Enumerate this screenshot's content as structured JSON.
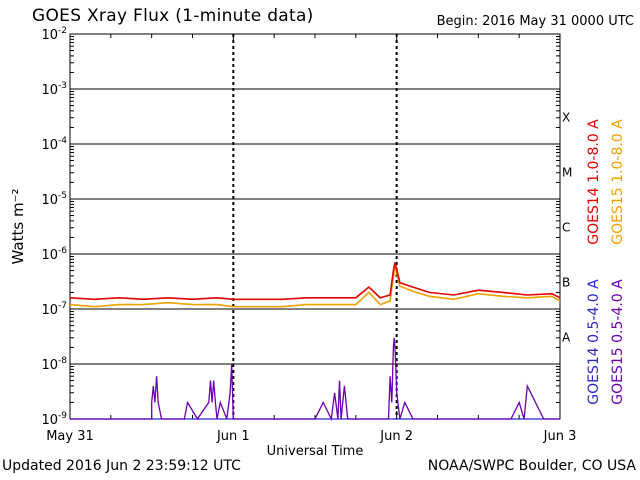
{
  "title": "GOES Xray Flux (1-minute data)",
  "begin_label": "Begin:  2016 May 31 0000 UTC",
  "updated_label": "Updated 2016 Jun  2 23:59:12 UTC",
  "credit_label": "NOAA/SWPC Boulder, CO USA",
  "colors": {
    "goes14_long": "#e60000",
    "goes15_long": "#f0a000",
    "goes14_short": "#2828c8",
    "goes15_short": "#6a00b0"
  },
  "chart_data": {
    "type": "line",
    "title": "GOES Xray Flux (1-minute data)",
    "xlabel": "Universal Time",
    "ylabel": "Watts m⁻²",
    "y_scale": "log",
    "ylim": [
      1e-09,
      0.01
    ],
    "xlim_days": [
      0,
      3
    ],
    "x_tick_labels": [
      "May 31",
      "Jun 1",
      "Jun 2",
      "Jun 3"
    ],
    "y_ticks": [
      {
        "base": "10",
        "exp": "-2"
      },
      {
        "base": "10",
        "exp": "-3"
      },
      {
        "base": "10",
        "exp": "-4"
      },
      {
        "base": "10",
        "exp": "-5"
      },
      {
        "base": "10",
        "exp": "-6"
      },
      {
        "base": "10",
        "exp": "-7"
      },
      {
        "base": "10",
        "exp": "-8"
      },
      {
        "base": "10",
        "exp": "-9"
      }
    ],
    "flare_classes": [
      {
        "label": "X",
        "log_flux": -3.5
      },
      {
        "label": "M",
        "log_flux": -4.5
      },
      {
        "label": "C",
        "log_flux": -5.5
      },
      {
        "label": "B",
        "log_flux": -6.5
      },
      {
        "label": "A",
        "log_flux": -7.5
      }
    ],
    "legend_position": "right",
    "series": [
      {
        "name": "GOES14 1.0-8.0 A",
        "x_days": [
          0,
          0.15,
          0.3,
          0.45,
          0.6,
          0.75,
          0.9,
          1.0,
          1.15,
          1.3,
          1.45,
          1.6,
          1.75,
          1.83,
          1.9,
          1.96,
          1.98,
          1.99,
          2.02,
          2.1,
          2.2,
          2.35,
          2.5,
          2.65,
          2.8,
          2.95,
          3.0
        ],
        "y_flux": [
          1.6e-07,
          1.5e-07,
          1.6e-07,
          1.5e-07,
          1.6e-07,
          1.5e-07,
          1.6e-07,
          1.5e-07,
          1.5e-07,
          1.5e-07,
          1.6e-07,
          1.6e-07,
          1.6e-07,
          2.5e-07,
          1.6e-07,
          1.8e-07,
          5e-07,
          7e-07,
          3e-07,
          2.5e-07,
          2e-07,
          1.8e-07,
          2.2e-07,
          2e-07,
          1.8e-07,
          1.9e-07,
          1.6e-07
        ]
      },
      {
        "name": "GOES15 1.0-8.0 A",
        "x_days": [
          0,
          0.15,
          0.3,
          0.45,
          0.6,
          0.75,
          0.9,
          1.0,
          1.15,
          1.3,
          1.45,
          1.6,
          1.75,
          1.83,
          1.9,
          1.96,
          1.98,
          1.99,
          2.02,
          2.1,
          2.2,
          2.35,
          2.5,
          2.65,
          2.8,
          2.95,
          3.0
        ],
        "y_flux": [
          1.2e-07,
          1.1e-07,
          1.2e-07,
          1.2e-07,
          1.3e-07,
          1.2e-07,
          1.2e-07,
          1.1e-07,
          1.1e-07,
          1.1e-07,
          1.2e-07,
          1.2e-07,
          1.2e-07,
          2e-07,
          1.2e-07,
          1.4e-07,
          4e-07,
          6e-07,
          2.6e-07,
          2.1e-07,
          1.7e-07,
          1.5e-07,
          1.9e-07,
          1.7e-07,
          1.6e-07,
          1.7e-07,
          1.4e-07
        ]
      },
      {
        "name": "GOES14 0.5-4.0 A",
        "x_days": [
          0,
          0.5,
          1.0,
          1.5,
          2.0,
          2.5,
          3.0
        ],
        "y_flux": [
          1e-09,
          1e-09,
          1e-09,
          1e-09,
          1e-09,
          1e-09,
          1e-09
        ]
      },
      {
        "name": "GOES15 0.5-4.0 A",
        "x_days": [
          0.0,
          0.28,
          0.5,
          0.5,
          0.51,
          0.52,
          0.53,
          0.54,
          0.56,
          0.6,
          0.7,
          0.72,
          0.78,
          0.85,
          0.86,
          0.87,
          0.88,
          0.89,
          0.9,
          0.92,
          0.96,
          0.98,
          0.99,
          1.0,
          1.05,
          1.2,
          1.5,
          1.55,
          1.6,
          1.62,
          1.64,
          1.65,
          1.66,
          1.68,
          1.7,
          1.8,
          1.9,
          1.95,
          1.96,
          1.97,
          1.98,
          1.985,
          1.99,
          1.995,
          2.0,
          2.02,
          2.05,
          2.1,
          2.3,
          2.5,
          2.6,
          2.7,
          2.75,
          2.78,
          2.8,
          2.9,
          3.0
        ],
        "y_flux": [
          1e-09,
          1e-09,
          1e-09,
          2e-09,
          4e-09,
          2e-09,
          6e-09,
          2e-09,
          1e-09,
          1e-09,
          1e-09,
          2e-09,
          1e-09,
          2e-09,
          5e-09,
          2e-09,
          5e-09,
          2e-09,
          1e-09,
          2e-09,
          1e-09,
          3e-09,
          1e-08,
          1e-09,
          1e-09,
          1e-09,
          1e-09,
          2e-09,
          1e-09,
          3e-09,
          1e-09,
          5e-09,
          1e-09,
          4e-09,
          1e-09,
          1e-09,
          1e-09,
          1e-09,
          6e-09,
          2e-09,
          2e-08,
          3e-08,
          2e-08,
          8e-09,
          3e-09,
          1e-09,
          2e-09,
          1e-09,
          1e-09,
          1e-09,
          1e-09,
          1e-09,
          2e-09,
          1e-09,
          4e-09,
          1e-09,
          1e-09
        ]
      }
    ]
  }
}
